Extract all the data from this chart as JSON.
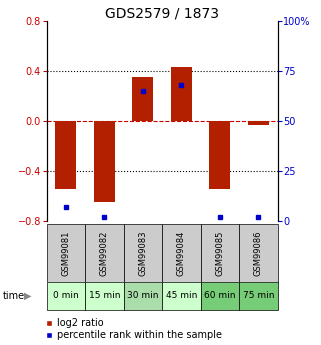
{
  "title": "GDS2579 / 1873",
  "samples": [
    "GSM99081",
    "GSM99082",
    "GSM99083",
    "GSM99084",
    "GSM99085",
    "GSM99086"
  ],
  "time_labels": [
    "0 min",
    "15 min",
    "30 min",
    "45 min",
    "60 min",
    "75 min"
  ],
  "log2_ratios": [
    -0.55,
    -0.65,
    0.35,
    0.43,
    -0.55,
    -0.03
  ],
  "percentile_ranks": [
    7,
    2,
    65,
    68,
    2,
    2
  ],
  "bar_color": "#B22000",
  "dot_color": "#0000CC",
  "ylim_left": [
    -0.8,
    0.8
  ],
  "ylim_right": [
    0,
    100
  ],
  "yticks_left": [
    -0.8,
    -0.4,
    0.0,
    0.4,
    0.8
  ],
  "yticks_right": [
    0,
    25,
    50,
    75,
    100
  ],
  "ytick_labels_right": [
    "0",
    "25",
    "50",
    "75",
    "100%"
  ],
  "time_bg_colors": [
    "#ccffcc",
    "#ccffcc",
    "#aaddaa",
    "#ccffcc",
    "#77cc77",
    "#77cc77"
  ],
  "sample_bg_color": "#cccccc",
  "bar_width": 0.55,
  "title_fontsize": 10,
  "tick_fontsize": 7,
  "legend_fontsize": 7,
  "time_label_fontsize": 6.5,
  "sample_label_fontsize": 6
}
